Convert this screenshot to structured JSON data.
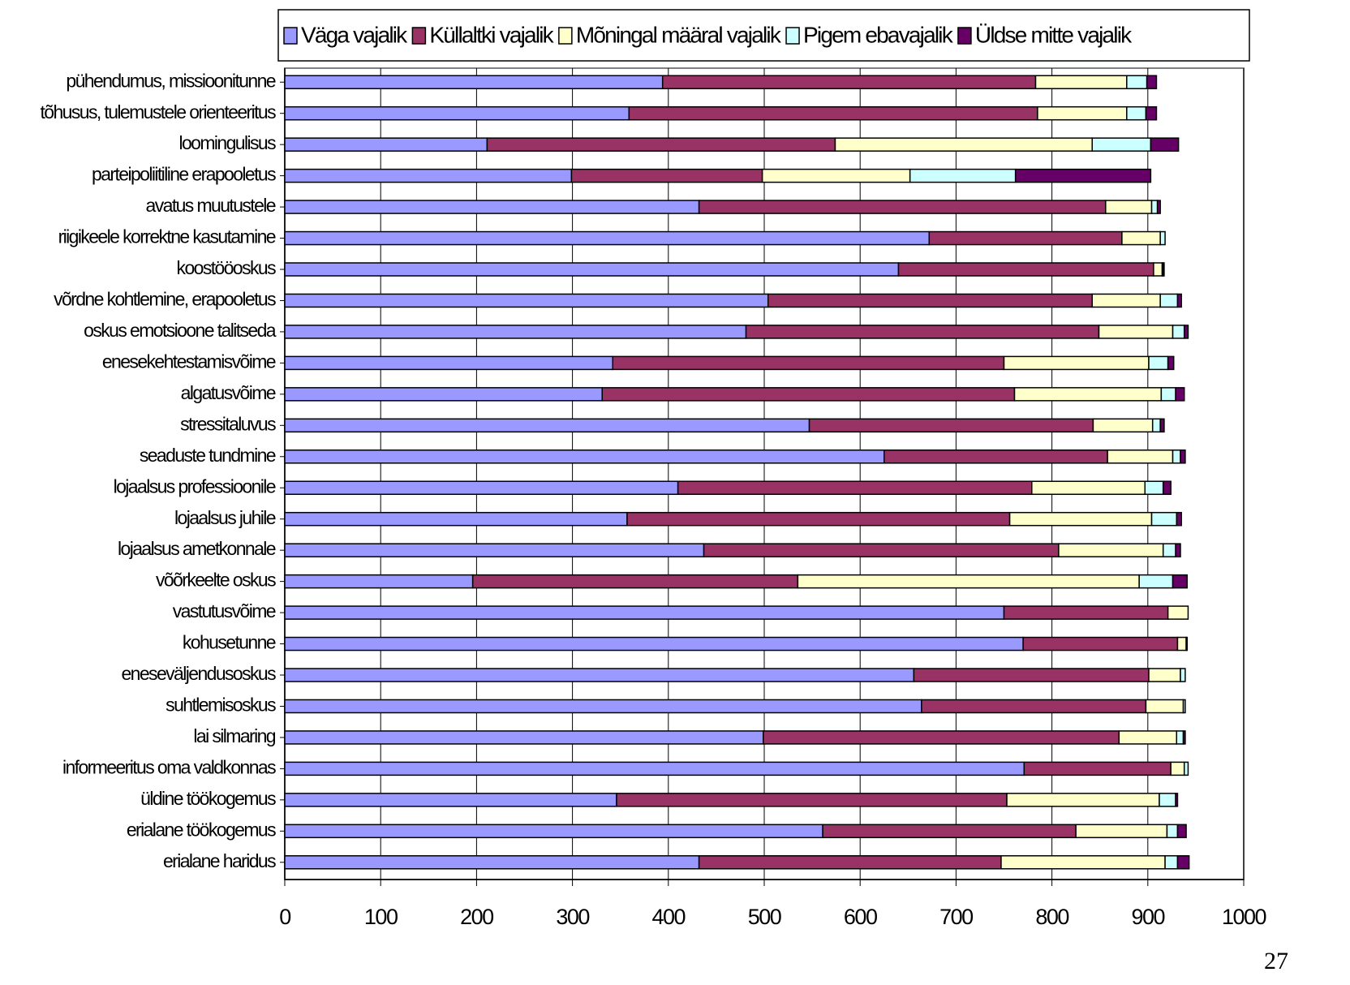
{
  "chart_data": {
    "type": "stacked_barh",
    "categories": [
      "pühendumus, missioonitunne",
      "tõhusus, tulemustele orienteeritus",
      "loomingulisus",
      "parteipoliitiline erapooletus",
      "avatus muutustele",
      "riigikeele korrektne kasutamine",
      "koostööoskus",
      "võrdne kohtlemine, erapooletus",
      "oskus emotsioone talitseda",
      "enesekehtestamisvõime",
      "algatusvõime",
      "stressitaluvus",
      "seaduste tundmine",
      "lojaalsus professioonile",
      "lojaalsus juhile",
      "lojaalsus ametkonnale",
      "võõrkeelte oskus",
      "vastutusvõime",
      "kohusetunne",
      "eneseväljendusoskus",
      "suhtlemisoskus",
      "lai silmaring",
      "informeeritus oma valdkonnas",
      "üldine töökogemus",
      "erialane töökogemus",
      "erialane haridus"
    ],
    "series": [
      {
        "name": "Väga vajalik",
        "color": "#9999ff",
        "values": [
          394,
          359,
          211,
          299,
          432,
          672,
          640,
          504,
          481,
          342,
          331,
          547,
          625,
          410,
          357,
          437,
          196,
          750,
          770,
          656,
          664,
          499,
          771,
          346,
          561,
          432
        ]
      },
      {
        "name": "Küllaltki vajalik",
        "color": "#993366",
        "values": [
          389,
          426,
          363,
          199,
          424,
          201,
          266,
          338,
          368,
          408,
          430,
          296,
          233,
          369,
          399,
          370,
          339,
          171,
          161,
          245,
          234,
          371,
          153,
          407,
          264,
          315
        ]
      },
      {
        "name": "Mõningal määral vajalik",
        "color": "#ffffcc",
        "values": [
          95,
          93,
          268,
          154,
          48,
          40,
          9,
          71,
          77,
          151,
          153,
          62,
          68,
          118,
          148,
          109,
          356,
          21,
          9,
          33,
          39,
          60,
          14,
          159,
          95,
          171
        ]
      },
      {
        "name": "Pigem ebavajalik",
        "color": "#ccffff",
        "values": [
          21,
          20,
          61,
          110,
          6,
          5,
          1,
          18,
          12,
          20,
          15,
          8,
          8,
          19,
          26,
          13,
          35,
          0,
          1,
          5,
          2,
          7,
          4,
          17,
          11,
          13
        ]
      },
      {
        "name": "Üldse mitte vajalik",
        "color": "#660066",
        "values": [
          10,
          11,
          29,
          141,
          3,
          0,
          1,
          4,
          4,
          6,
          9,
          4,
          5,
          8,
          5,
          5,
          15,
          0,
          0,
          0,
          0,
          2,
          0,
          2,
          9,
          12
        ]
      }
    ],
    "xlim": [
      0,
      1000
    ],
    "xticks": [
      0,
      100,
      200,
      300,
      400,
      500,
      600,
      700,
      800,
      900,
      1000
    ],
    "grid": true,
    "legend": "top"
  },
  "page_number": "27"
}
